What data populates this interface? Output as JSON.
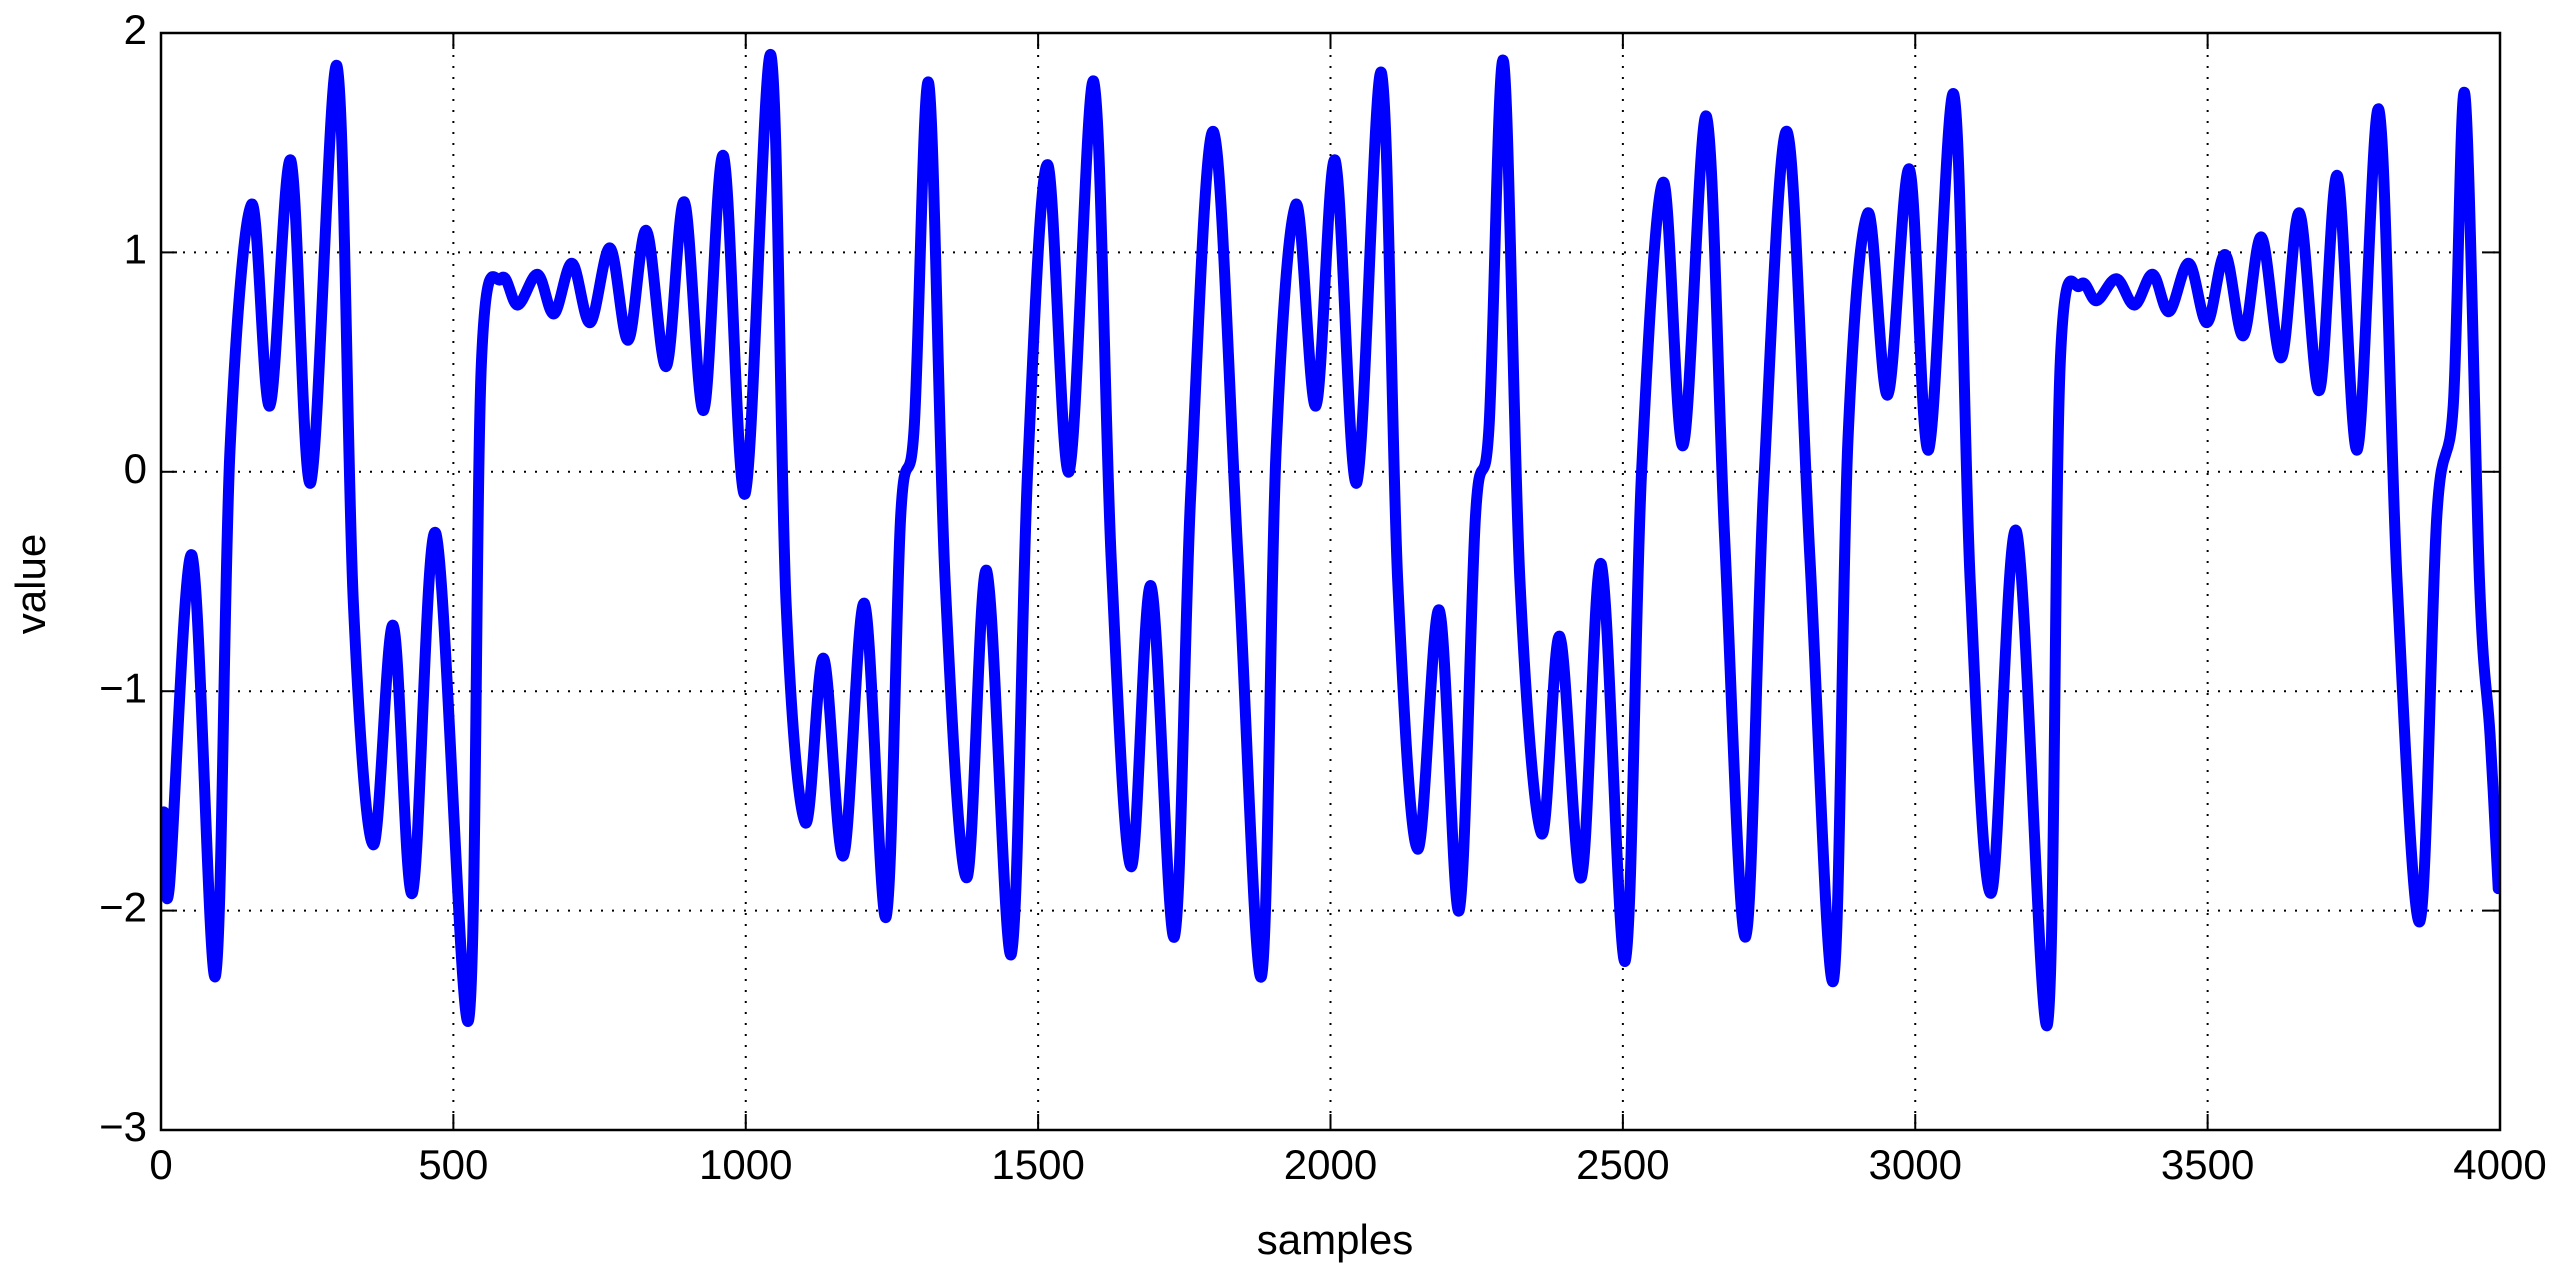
{
  "chart_data": {
    "type": "line",
    "xlabel": "samples",
    "ylabel": "value",
    "xlim": [
      0,
      4000
    ],
    "ylim": [
      -3,
      2
    ],
    "xticks": [
      0,
      500,
      1000,
      1500,
      2000,
      2500,
      3000,
      3500,
      4000
    ],
    "yticks": [
      {
        "value": -3,
        "label": "−3"
      },
      {
        "value": -2,
        "label": "−2"
      },
      {
        "value": -1,
        "label": "−1"
      },
      0,
      1,
      2
    ],
    "grid": true,
    "series": [
      {
        "color": "#0000ff",
        "x": [
          5,
          14,
          53,
          93,
          118,
          155,
          186,
          222,
          256,
          301,
          329,
          363,
          397,
          430,
          470,
          526,
          548,
          582,
          610,
          644,
          672,
          703,
          734,
          768,
          799,
          830,
          864,
          895,
          928,
          962,
          999,
          1043,
          1069,
          1102,
          1133,
          1167,
          1203,
          1240,
          1265,
          1288,
          1313,
          1341,
          1378,
          1412,
          1454,
          1482,
          1516,
          1553,
          1595,
          1625,
          1659,
          1693,
          1733,
          1761,
          1800,
          1842,
          1882,
          1907,
          1941,
          1975,
          2008,
          2045,
          2087,
          2115,
          2149,
          2186,
          2220,
          2248,
          2271,
          2296,
          2324,
          2361,
          2392,
          2429,
          2463,
          2504,
          2532,
          2569,
          2603,
          2643,
          2674,
          2710,
          2741,
          2781,
          2820,
          2860,
          2885,
          2919,
          2953,
          2990,
          3023,
          3066,
          3094,
          3130,
          3173,
          3226,
          3248,
          3282,
          3310,
          3344,
          3375,
          3406,
          3434,
          3468,
          3499,
          3530,
          3561,
          3592,
          3626,
          3657,
          3691,
          3722,
          3756,
          3793,
          3824,
          3863,
          3892,
          3920,
          3940,
          3965,
          3983,
          3997
        ],
        "values": [
          -1.55,
          -1.9,
          -0.38,
          -2.3,
          0.1,
          1.22,
          0.3,
          1.42,
          -0.05,
          1.85,
          -0.6,
          -1.7,
          -0.7,
          -1.92,
          -0.28,
          -2.5,
          0.5,
          0.88,
          0.76,
          0.9,
          0.72,
          0.95,
          0.68,
          1.02,
          0.6,
          1.1,
          0.48,
          1.23,
          0.28,
          1.44,
          -0.1,
          1.9,
          -0.6,
          -1.6,
          -0.85,
          -1.75,
          -0.6,
          -2.03,
          -0.2,
          0.2,
          1.77,
          -0.5,
          -1.85,
          -0.45,
          -2.2,
          0.0,
          1.4,
          0.0,
          1.78,
          -0.4,
          -1.8,
          -0.52,
          -2.12,
          -0.1,
          1.55,
          -0.4,
          -2.3,
          0.1,
          1.22,
          0.3,
          1.42,
          -0.05,
          1.82,
          -0.5,
          -1.72,
          -0.63,
          -2.0,
          -0.2,
          0.2,
          1.87,
          -0.5,
          -1.65,
          -0.75,
          -1.85,
          -0.42,
          -2.23,
          0.0,
          1.32,
          0.12,
          1.62,
          -0.3,
          -2.12,
          -0.05,
          1.55,
          -0.4,
          -2.32,
          0.15,
          1.18,
          0.35,
          1.38,
          0.1,
          1.72,
          -0.5,
          -1.92,
          -0.27,
          -2.52,
          0.5,
          0.85,
          0.78,
          0.88,
          0.76,
          0.9,
          0.73,
          0.95,
          0.68,
          0.99,
          0.62,
          1.07,
          0.52,
          1.18,
          0.37,
          1.35,
          0.1,
          1.65,
          -0.5,
          -2.05,
          -0.2,
          0.3,
          1.72,
          -0.5,
          -1.2,
          -1.9
        ]
      }
    ]
  }
}
